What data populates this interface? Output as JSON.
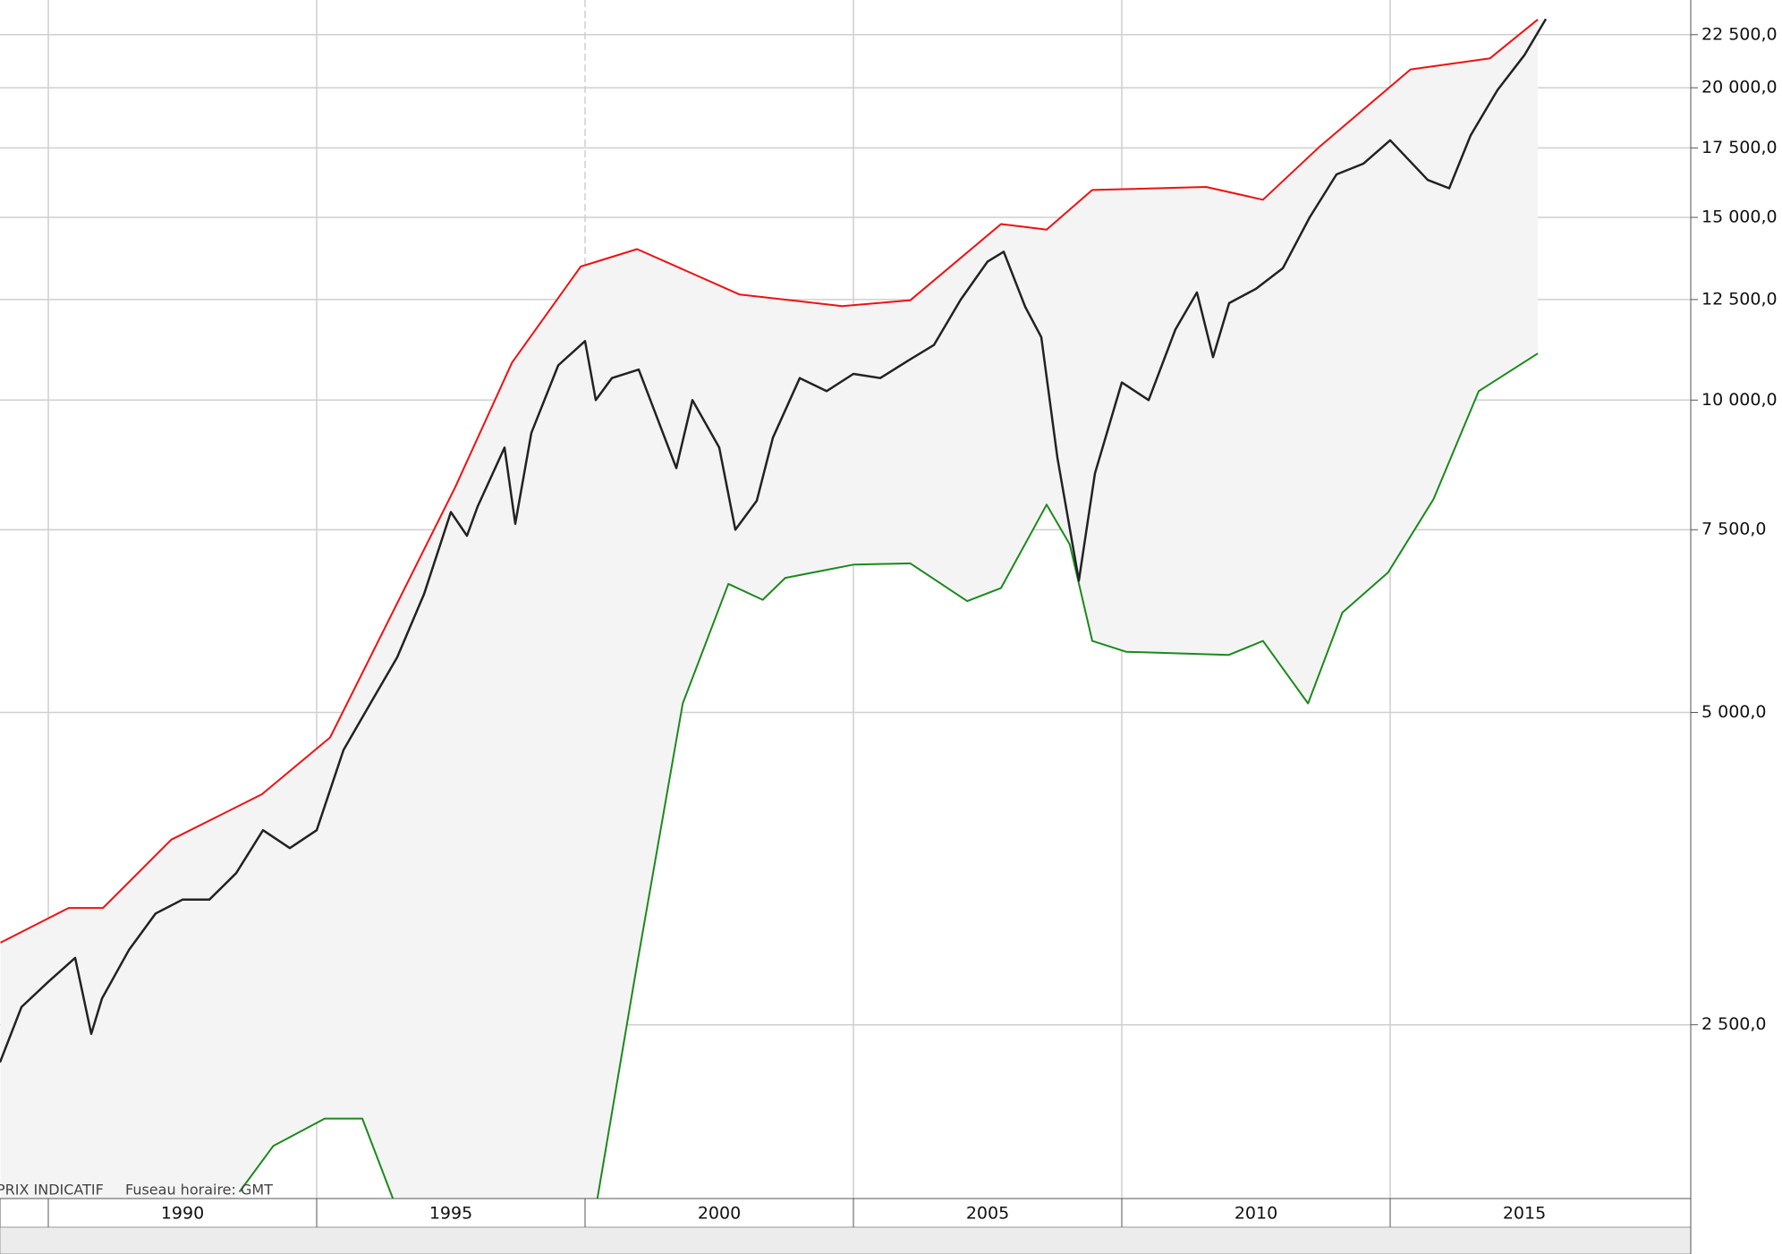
{
  "chart_data": {
    "type": "line",
    "log_scale": true,
    "grid": true,
    "notes": [
      "PRIX INDICATIF",
      "Fuseau horaire: GMT"
    ],
    "xlim": [
      1989.1,
      2020.6
    ],
    "xticks": [
      1990,
      1995,
      2000,
      2005,
      2010,
      2015
    ],
    "ylim": [
      1700,
      24300
    ],
    "yticks": [
      {
        "value": 2500,
        "label": "2 500,0"
      },
      {
        "value": 5000,
        "label": "5 000,0"
      },
      {
        "value": 7500,
        "label": "7 500,0"
      },
      {
        "value": 10000,
        "label": "10 000,0"
      },
      {
        "value": 12500,
        "label": "12 500,0"
      },
      {
        "value": 15000,
        "label": "15 000,0"
      },
      {
        "value": 17500,
        "label": "17 500,0"
      },
      {
        "value": 20000,
        "label": "20 000,0"
      },
      {
        "value": 22500,
        "label": "22 500,0"
      }
    ],
    "band_fill": "#f4f4f4",
    "series": [
      {
        "color": "#ee1111",
        "band": "upper",
        "x": [
          1989.11,
          1990.38,
          1991.02,
          1992.29,
          1993.98,
          1995.25,
          1997.58,
          1998.64,
          1999.92,
          2000.97,
          2002.88,
          2004.79,
          2006.06,
          2007.75,
          2008.6,
          2009.45,
          2011.57,
          2012.63,
          2013.69,
          2015.38,
          2016.86,
          2017.75
        ],
        "values": [
          3000,
          3240,
          3240,
          3770,
          4170,
          4730,
          8240,
          10870,
          13450,
          13980,
          12640,
          12320,
          12480,
          14780,
          14600,
          15940,
          16050,
          15600,
          17560,
          20830,
          21350,
          23270
        ]
      },
      {
        "color": "#1a8a1a",
        "band": "lower",
        "x": [
          1993.56,
          1994.19,
          1995.15,
          1995.85,
          1996.42,
          1997.5,
          2000.23,
          2000.97,
          2001.82,
          2002.67,
          2003.31,
          2003.73,
          2005.0,
          2006.06,
          2007.12,
          2007.75,
          2008.6,
          2009.03,
          2009.45,
          2010.08,
          2011.99,
          2012.63,
          2013.47,
          2014.11,
          2014.96,
          2015.81,
          2016.65,
          2017.75
        ],
        "values": [
          1725,
          1910,
          2030,
          2030,
          1700,
          null,
          1700,
          2860,
          5100,
          6650,
          6420,
          6740,
          6940,
          6960,
          6400,
          6590,
          7930,
          7260,
          5860,
          5720,
          5680,
          5860,
          5100,
          6240,
          6820,
          8030,
          10200,
          11090
        ]
      },
      {
        "color": "#222222",
        "x": [
          1989.1,
          1989.5,
          1990.0,
          1990.5,
          1990.8,
          1991.0,
          1991.5,
          1992.0,
          1992.5,
          1993.0,
          1993.5,
          1994.0,
          1994.5,
          1995.0,
          1995.5,
          1996.0,
          1996.5,
          1997.0,
          1997.5,
          1997.8,
          1998.0,
          1998.5,
          1998.7,
          1999.0,
          1999.5,
          2000.0,
          2000.2,
          2000.5,
          2001.0,
          2001.7,
          2002.0,
          2002.5,
          2002.8,
          2003.2,
          2003.5,
          2004.0,
          2004.5,
          2005.0,
          2005.5,
          2006.0,
          2006.5,
          2007.0,
          2007.5,
          2007.8,
          2008.2,
          2008.5,
          2008.8,
          2009.2,
          2009.5,
          2010.0,
          2010.5,
          2011.0,
          2011.4,
          2011.7,
          2012.0,
          2012.5,
          2013.0,
          2013.5,
          2014.0,
          2014.5,
          2015.0,
          2015.7,
          2016.1,
          2016.5,
          2017.0,
          2017.5,
          2017.9
        ],
        "values": [
          2300,
          2600,
          2750,
          2900,
          2450,
          2650,
          2950,
          3200,
          3300,
          3300,
          3500,
          3850,
          3700,
          3850,
          4600,
          5100,
          5650,
          6500,
          7800,
          7400,
          7900,
          9000,
          7600,
          9300,
          10800,
          11400,
          10000,
          10500,
          10700,
          8600,
          10000,
          9000,
          7500,
          8000,
          9200,
          10500,
          10200,
          10600,
          10500,
          10900,
          11300,
          12500,
          13600,
          13900,
          12300,
          11500,
          8800,
          6700,
          8500,
          10400,
          10000,
          11700,
          12700,
          11000,
          12400,
          12800,
          13400,
          15000,
          16500,
          16900,
          17800,
          16300,
          16000,
          18000,
          19900,
          21500,
          23300
        ]
      }
    ]
  }
}
